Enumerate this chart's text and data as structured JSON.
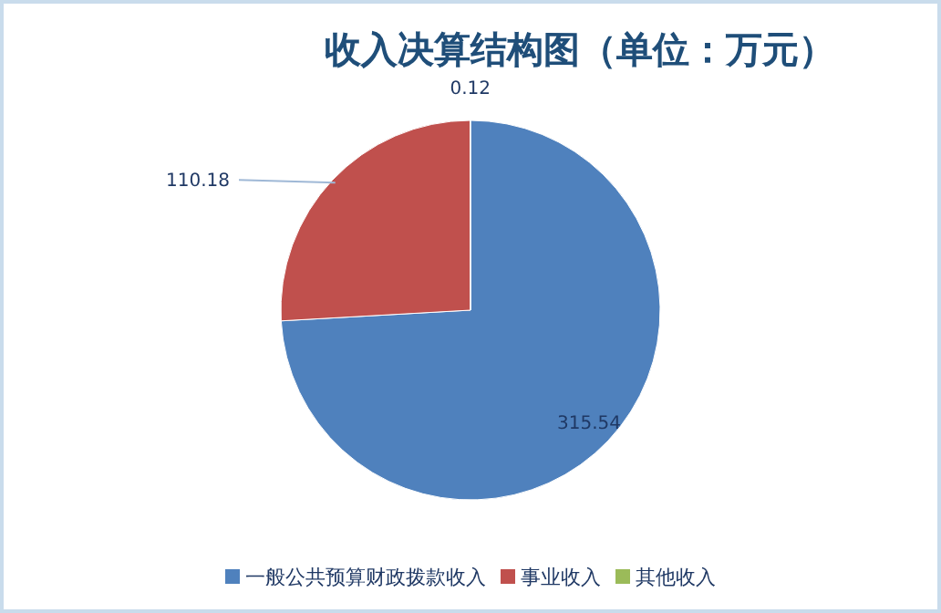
{
  "chart_data": {
    "type": "pie",
    "title": "收入决算结构图（单位：万元）",
    "categories": [
      "一般公共预算财政拨款收入",
      "事业收入",
      "其他收入"
    ],
    "values": [
      315.54,
      110.18,
      0.12
    ],
    "colors": [
      "#4f81bd",
      "#c0504d",
      "#9bbb59"
    ],
    "data_labels": true,
    "legend": "bottom"
  }
}
